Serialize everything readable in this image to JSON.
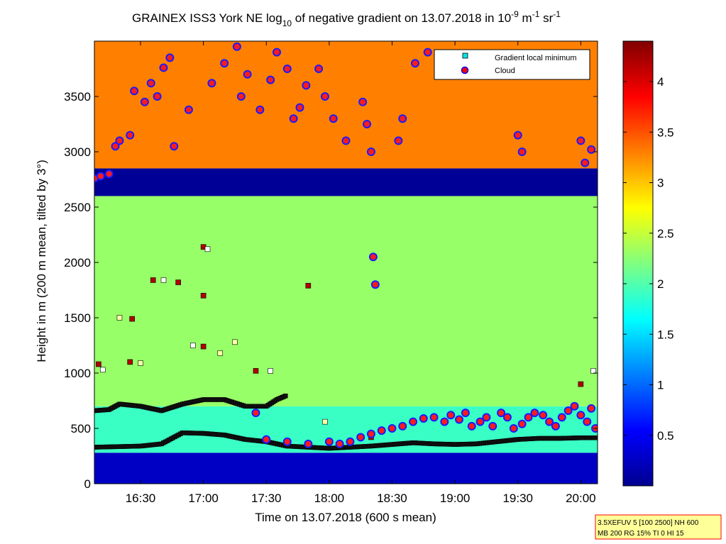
{
  "chart_data": {
    "type": "heatmap",
    "title": {
      "prefix": "GRAINEX ISS3 York NE log",
      "sub": "10",
      "middle": " of negative gradient on 13.07.2018 in 10",
      "sup1": "-9",
      "m": " m",
      "sup2": "-1",
      "sr": " sr",
      "sup3": "-1"
    },
    "xlabel": "Time on 13.07.2018 (600 s mean)",
    "ylabel": "Height in m (200 m mean, tilted by 3°)",
    "x_range_minutes": [
      968,
      1208
    ],
    "x_ticks": [
      {
        "label": "16:30",
        "min": 990
      },
      {
        "label": "17:00",
        "min": 1020
      },
      {
        "label": "17:30",
        "min": 1050
      },
      {
        "label": "18:00",
        "min": 1080
      },
      {
        "label": "18:30",
        "min": 1110
      },
      {
        "label": "19:00",
        "min": 1140
      },
      {
        "label": "19:30",
        "min": 1170
      },
      {
        "label": "20:00",
        "min": 1200
      }
    ],
    "ylim": [
      0,
      4000
    ],
    "y_ticks": [
      0,
      500,
      1000,
      1500,
      2000,
      2500,
      3000,
      3500
    ],
    "colorbar": {
      "range": [
        0,
        4.4
      ],
      "ticks": [
        "0.5",
        "1",
        "1.5",
        "2",
        "2.5",
        "3",
        "3.5",
        "4"
      ],
      "tick_values": [
        0.5,
        1,
        1.5,
        2,
        2.5,
        3,
        3.5,
        4
      ],
      "colormap": "jet"
    },
    "legend": {
      "placement": "top-right",
      "entries": [
        {
          "label": "Gradient local minimum",
          "marker": "square",
          "color": "#00e5e5"
        },
        {
          "label": "Cloud",
          "marker": "circle",
          "color": "#ff0000",
          "edge": "#0000ff"
        }
      ]
    },
    "layers": [
      {
        "name": "surface",
        "y0": 0,
        "y1": 280,
        "value": 0.3
      },
      {
        "name": "boundary layer",
        "y0": 280,
        "y1": 700,
        "value": 1.9
      },
      {
        "name": "residual layer",
        "y0": 700,
        "y1": 2600,
        "value": 2.3
      },
      {
        "name": "gap",
        "y0": 2600,
        "y1": 2850,
        "value": 0.1
      },
      {
        "name": "upper",
        "y0": 2850,
        "y1": 4000,
        "value": 3.3
      }
    ],
    "gradient_minimum_lines": [
      {
        "name": "lower",
        "points": [
          [
            968,
            330
          ],
          [
            990,
            340
          ],
          [
            1000,
            360
          ],
          [
            1010,
            460
          ],
          [
            1020,
            455
          ],
          [
            1030,
            440
          ],
          [
            1040,
            400
          ],
          [
            1050,
            380
          ],
          [
            1060,
            340
          ],
          [
            1070,
            330
          ],
          [
            1080,
            320
          ],
          [
            1090,
            330
          ],
          [
            1100,
            340
          ],
          [
            1110,
            355
          ],
          [
            1120,
            370
          ],
          [
            1130,
            360
          ],
          [
            1140,
            355
          ],
          [
            1150,
            360
          ],
          [
            1160,
            380
          ],
          [
            1170,
            400
          ],
          [
            1180,
            410
          ],
          [
            1190,
            410
          ],
          [
            1200,
            415
          ],
          [
            1208,
            415
          ]
        ]
      },
      {
        "name": "upper",
        "points": [
          [
            968,
            660
          ],
          [
            975,
            670
          ],
          [
            980,
            720
          ],
          [
            990,
            700
          ],
          [
            1000,
            660
          ],
          [
            1010,
            720
          ],
          [
            1020,
            760
          ],
          [
            1030,
            760
          ],
          [
            1040,
            700
          ],
          [
            1050,
            700
          ],
          [
            1055,
            760
          ],
          [
            1060,
            800
          ]
        ]
      }
    ],
    "cloud_points": [
      [
        968,
        2760
      ],
      [
        971,
        2780
      ],
      [
        975,
        2800
      ],
      [
        978,
        3050
      ],
      [
        980,
        3100
      ],
      [
        985,
        3150
      ],
      [
        987,
        3550
      ],
      [
        992,
        3450
      ],
      [
        995,
        3620
      ],
      [
        998,
        3500
      ],
      [
        1001,
        3760
      ],
      [
        1004,
        3850
      ],
      [
        1006,
        3050
      ],
      [
        1013,
        3380
      ],
      [
        1024,
        3620
      ],
      [
        1030,
        3800
      ],
      [
        1036,
        3950
      ],
      [
        1038,
        3500
      ],
      [
        1041,
        3700
      ],
      [
        1047,
        3380
      ],
      [
        1052,
        3650
      ],
      [
        1055,
        3900
      ],
      [
        1060,
        3750
      ],
      [
        1063,
        3300
      ],
      [
        1066,
        3400
      ],
      [
        1069,
        3600
      ],
      [
        1075,
        3750
      ],
      [
        1078,
        3500
      ],
      [
        1082,
        3300
      ],
      [
        1088,
        3100
      ],
      [
        1096,
        3450
      ],
      [
        1098,
        3250
      ],
      [
        1100,
        3000
      ],
      [
        1101,
        2050
      ],
      [
        1102,
        1800
      ],
      [
        1113,
        3100
      ],
      [
        1115,
        3300
      ],
      [
        1121,
        3800
      ],
      [
        1127,
        3900
      ],
      [
        1045,
        640
      ],
      [
        1050,
        400
      ],
      [
        1060,
        380
      ],
      [
        1070,
        360
      ],
      [
        1080,
        380
      ],
      [
        1085,
        360
      ],
      [
        1090,
        380
      ],
      [
        1095,
        420
      ],
      [
        1100,
        450
      ],
      [
        1105,
        480
      ],
      [
        1110,
        500
      ],
      [
        1115,
        520
      ],
      [
        1120,
        560
      ],
      [
        1125,
        590
      ],
      [
        1130,
        600
      ],
      [
        1135,
        560
      ],
      [
        1138,
        620
      ],
      [
        1142,
        580
      ],
      [
        1145,
        640
      ],
      [
        1148,
        520
      ],
      [
        1152,
        560
      ],
      [
        1155,
        600
      ],
      [
        1158,
        520
      ],
      [
        1162,
        640
      ],
      [
        1165,
        600
      ],
      [
        1168,
        500
      ],
      [
        1172,
        540
      ],
      [
        1175,
        600
      ],
      [
        1178,
        640
      ],
      [
        1182,
        620
      ],
      [
        1185,
        560
      ],
      [
        1188,
        520
      ],
      [
        1191,
        600
      ],
      [
        1194,
        660
      ],
      [
        1197,
        700
      ],
      [
        1200,
        620
      ],
      [
        1203,
        560
      ],
      [
        1205,
        680
      ],
      [
        1207,
        500
      ],
      [
        1170,
        3150
      ],
      [
        1172,
        3000
      ],
      [
        1200,
        3100
      ],
      [
        1202,
        2900
      ],
      [
        1205,
        3020
      ]
    ],
    "extra_minima": [
      [
        970,
        1080
      ],
      [
        972,
        1030
      ],
      [
        985,
        1100
      ],
      [
        990,
        1090
      ],
      [
        996,
        1840
      ],
      [
        1001,
        1840
      ],
      [
        1008,
        1820
      ],
      [
        980,
        1500
      ],
      [
        986,
        1490
      ],
      [
        1015,
        1250
      ],
      [
        1020,
        1240
      ],
      [
        1028,
        1180
      ],
      [
        1020,
        2140
      ],
      [
        1022,
        2120
      ],
      [
        1020,
        1700
      ],
      [
        1035,
        1280
      ],
      [
        1045,
        1020
      ],
      [
        1052,
        1020
      ],
      [
        1070,
        1790
      ],
      [
        1078,
        560
      ],
      [
        1100,
        420
      ],
      [
        1206,
        1020
      ],
      [
        1200,
        900
      ]
    ],
    "info_box": {
      "line1": "3.5XEFUV 5 [100 2500] NH 600",
      "line2": "MB 200 RG 15% TI 0 HI 15"
    }
  }
}
